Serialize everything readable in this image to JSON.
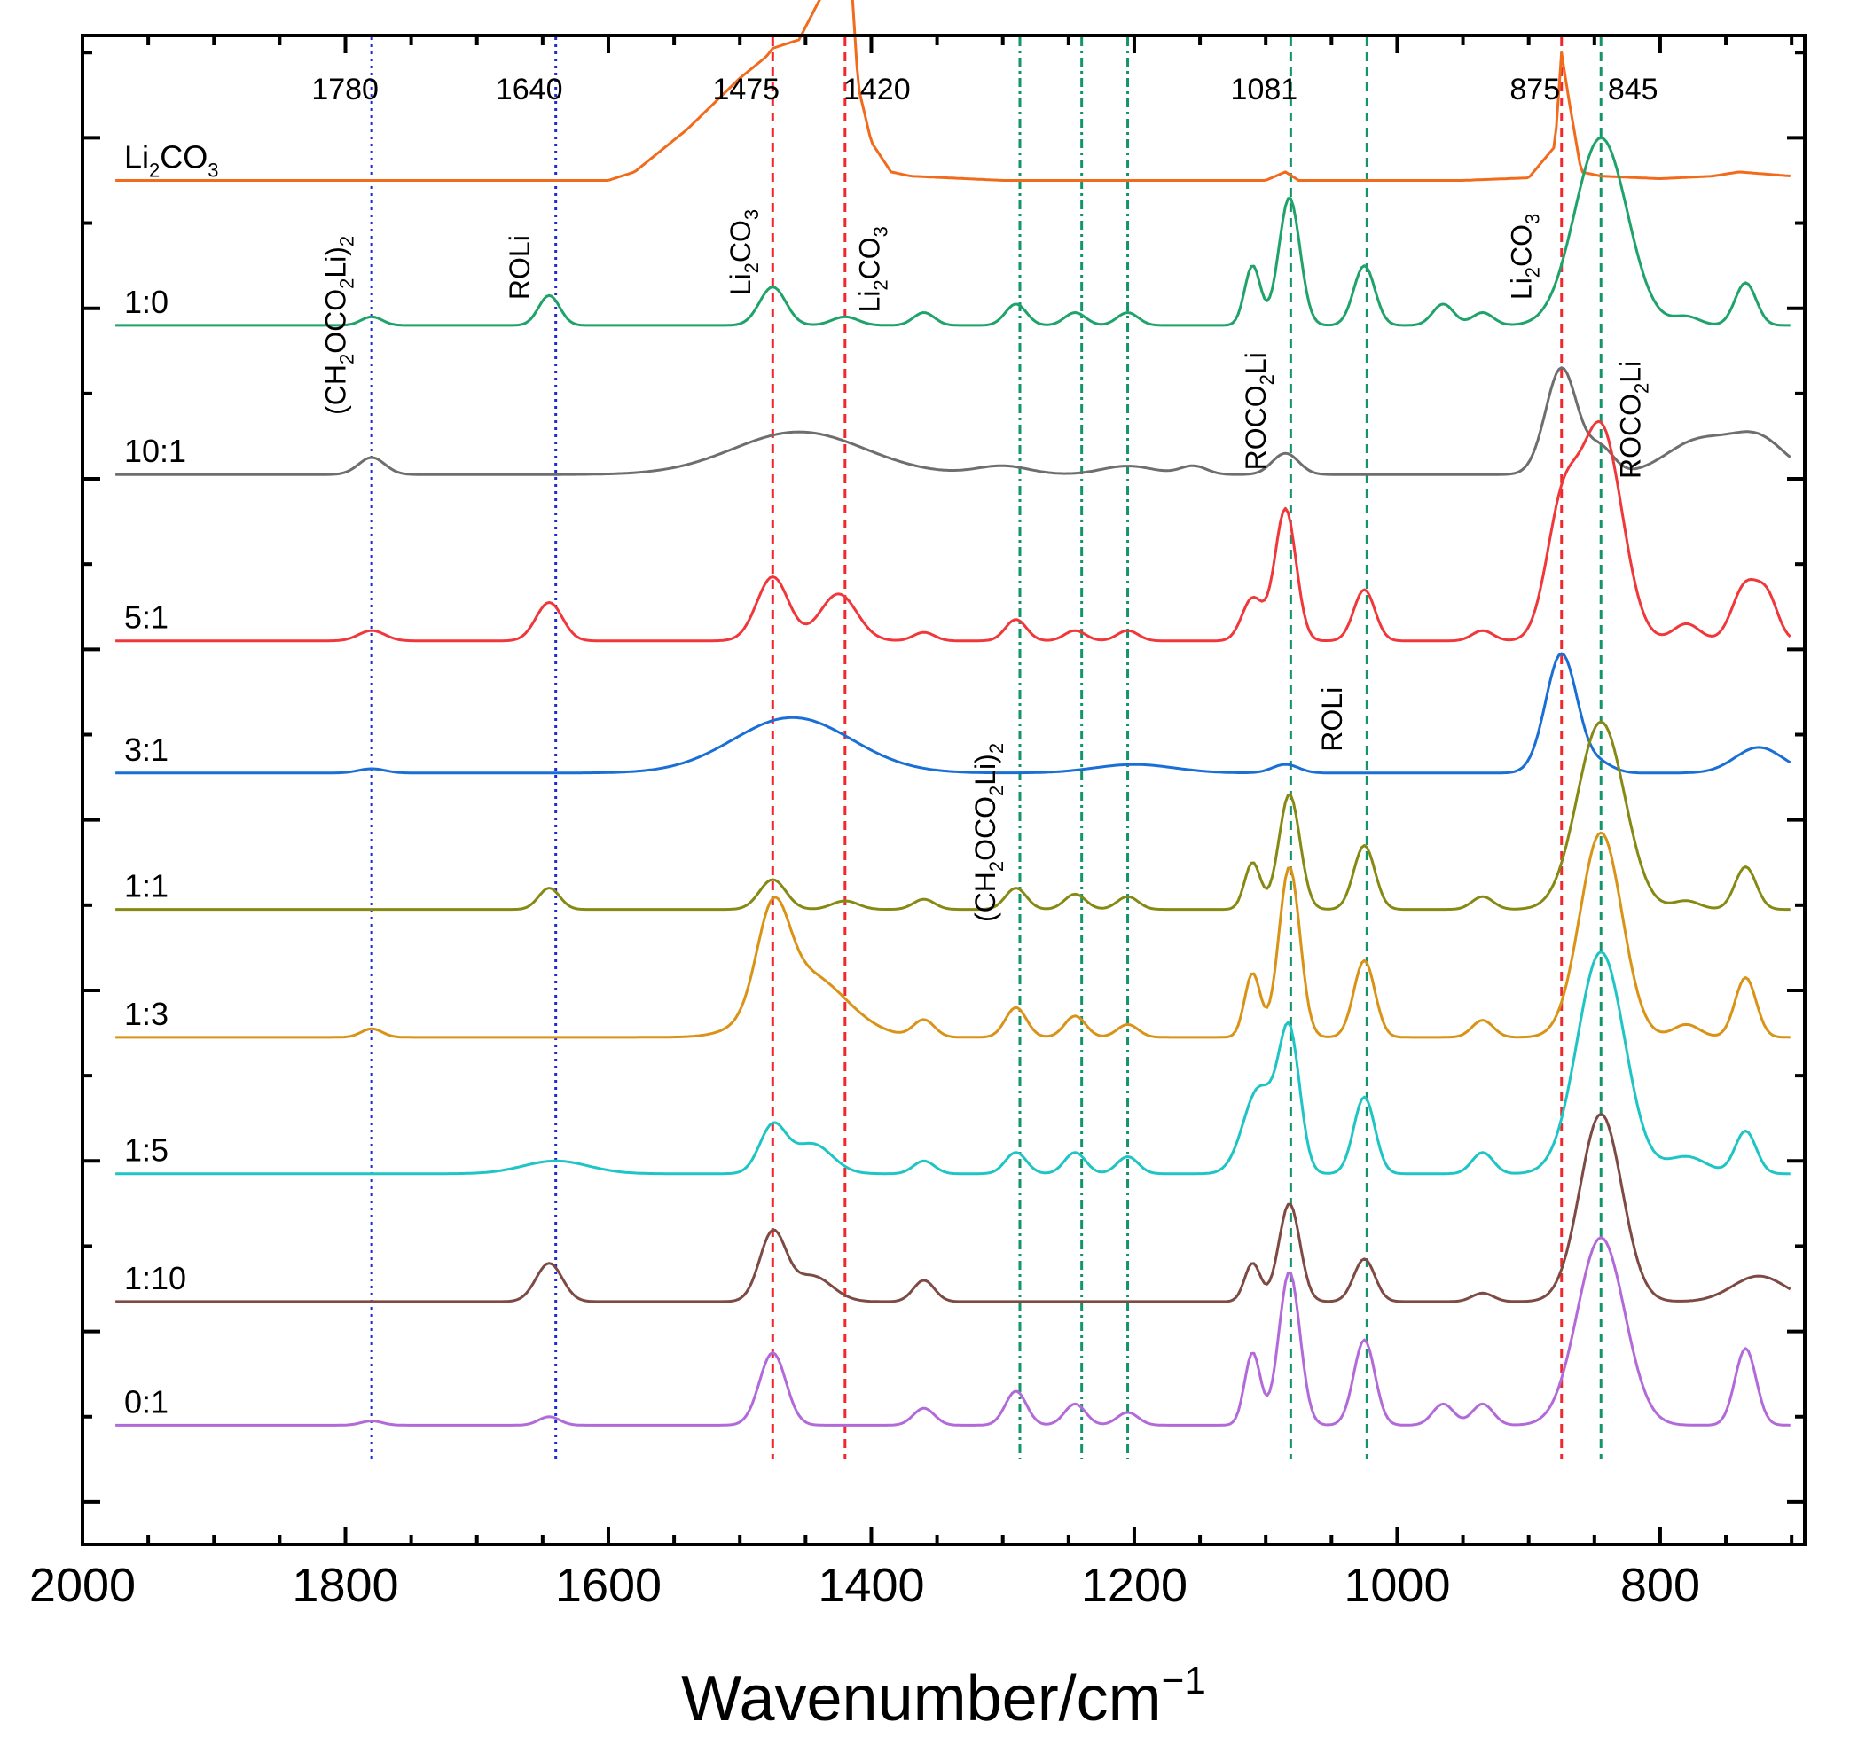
{
  "chart_data": {
    "type": "line",
    "title": "",
    "xlabel": "Wavenumber/cm",
    "xlabel_superscript": "−1",
    "ylabel": "",
    "xlim": [
      2000,
      690
    ],
    "x_ticks": [
      2000,
      1800,
      1600,
      1400,
      1200,
      1000,
      800
    ],
    "x_tick_labels": [
      "2000",
      "1800",
      "1600",
      "1400",
      "1200",
      "1000",
      "800"
    ],
    "y_axis_ticks_shown": true,
    "y_axis_labels_shown": false,
    "stack_order_top_to_bottom": [
      "Li2CO3",
      "1:0",
      "10:1",
      "5:1",
      "3:1",
      "1:1",
      "1:3",
      "1:5",
      "1:10",
      "0:1"
    ],
    "series": [
      {
        "name": "Li2CO3",
        "label_main": "Li",
        "label_sub1": "2",
        "label_mid": "CO",
        "label_sub2": "3",
        "color": "#f26b1d",
        "baseline": 11.5,
        "points": [
          [
            1970,
            0
          ],
          [
            1600,
            0
          ],
          [
            1580,
            0.1
          ],
          [
            1540,
            0.6
          ],
          [
            1500,
            1.2
          ],
          [
            1480,
            1.45
          ],
          [
            1475,
            1.55
          ],
          [
            1465,
            1.6
          ],
          [
            1455,
            1.65
          ],
          [
            1440,
            2.1
          ],
          [
            1425,
            2.5
          ],
          [
            1420,
            2.55
          ],
          [
            1415,
            2.3
          ],
          [
            1410,
            1.1
          ],
          [
            1400,
            0.45
          ],
          [
            1385,
            0.1
          ],
          [
            1370,
            0.05
          ],
          [
            1300,
            0
          ],
          [
            1100,
            0
          ],
          [
            1085,
            0.1
          ],
          [
            1075,
            0
          ],
          [
            950,
            0
          ],
          [
            900,
            0.03
          ],
          [
            880,
            0.4
          ],
          [
            875,
            1.5
          ],
          [
            870,
            1.0
          ],
          [
            860,
            0.1
          ],
          [
            845,
            0.05
          ],
          [
            800,
            0.02
          ],
          [
            760,
            0.05
          ],
          [
            740,
            0.1
          ],
          [
            700,
            0.05
          ]
        ]
      },
      {
        "name": "1:0",
        "label": "1:0",
        "color": "#1fa36a",
        "baseline": 9.8,
        "peaks": [
          [
            1780,
            0.1,
            8
          ],
          [
            1645,
            0.35,
            8
          ],
          [
            1475,
            0.45,
            10
          ],
          [
            1420,
            0.1,
            10
          ],
          [
            1360,
            0.15,
            8
          ],
          [
            1290,
            0.25,
            8
          ],
          [
            1245,
            0.15,
            8
          ],
          [
            1205,
            0.15,
            8
          ],
          [
            1110,
            0.7,
            6
          ],
          [
            1082,
            1.5,
            8
          ],
          [
            1025,
            0.7,
            8
          ],
          [
            965,
            0.25,
            8
          ],
          [
            935,
            0.15,
            8
          ],
          [
            845,
            2.2,
            20
          ],
          [
            780,
            0.1,
            10
          ],
          [
            735,
            0.5,
            8
          ]
        ]
      },
      {
        "name": "10:1",
        "label": "10:1",
        "color": "#6e6e6e",
        "baseline": 8.05,
        "peaks": [
          [
            1780,
            0.2,
            10
          ],
          [
            1455,
            0.5,
            50
          ],
          [
            1300,
            0.1,
            20
          ],
          [
            1205,
            0.1,
            20
          ],
          [
            1155,
            0.1,
            10
          ],
          [
            1085,
            0.25,
            10
          ],
          [
            875,
            1.25,
            12
          ],
          [
            845,
            0.3,
            10
          ],
          [
            770,
            0.4,
            25
          ],
          [
            725,
            0.4,
            20
          ]
        ]
      },
      {
        "name": "5:1",
        "label": "5:1",
        "color": "#f0373a",
        "baseline": 6.1,
        "peaks": [
          [
            1780,
            0.12,
            10
          ],
          [
            1645,
            0.45,
            10
          ],
          [
            1475,
            0.75,
            12
          ],
          [
            1425,
            0.55,
            14
          ],
          [
            1360,
            0.1,
            8
          ],
          [
            1290,
            0.25,
            8
          ],
          [
            1245,
            0.12,
            8
          ],
          [
            1205,
            0.12,
            8
          ],
          [
            1110,
            0.5,
            8
          ],
          [
            1085,
            1.55,
            8
          ],
          [
            1025,
            0.6,
            8
          ],
          [
            935,
            0.12,
            8
          ],
          [
            875,
            1.4,
            12
          ],
          [
            845,
            2.5,
            16
          ],
          [
            780,
            0.2,
            10
          ],
          [
            735,
            0.65,
            10
          ],
          [
            718,
            0.45,
            8
          ]
        ]
      },
      {
        "name": "3:1",
        "label": "3:1",
        "color": "#1a6fd6",
        "baseline": 4.55,
        "peaks": [
          [
            1780,
            0.05,
            10
          ],
          [
            1460,
            0.65,
            45
          ],
          [
            1085,
            0.1,
            10
          ],
          [
            1200,
            0.1,
            30
          ],
          [
            875,
            1.4,
            12
          ],
          [
            845,
            0.1,
            10
          ],
          [
            725,
            0.3,
            18
          ]
        ]
      },
      {
        "name": "1:1",
        "label": "1:1",
        "color": "#868a14",
        "baseline": 2.95,
        "peaks": [
          [
            1645,
            0.25,
            8
          ],
          [
            1475,
            0.35,
            10
          ],
          [
            1420,
            0.1,
            10
          ],
          [
            1360,
            0.12,
            8
          ],
          [
            1290,
            0.25,
            8
          ],
          [
            1245,
            0.18,
            8
          ],
          [
            1205,
            0.15,
            8
          ],
          [
            1110,
            0.55,
            6
          ],
          [
            1082,
            1.35,
            8
          ],
          [
            1025,
            0.75,
            8
          ],
          [
            935,
            0.15,
            8
          ],
          [
            845,
            2.2,
            18
          ],
          [
            780,
            0.1,
            10
          ],
          [
            735,
            0.5,
            8
          ]
        ]
      },
      {
        "name": "1:3",
        "label": "1:3",
        "color": "#d99316",
        "baseline": 1.45,
        "peaks": [
          [
            1780,
            0.1,
            8
          ],
          [
            1475,
            1.1,
            12
          ],
          [
            1450,
            0.75,
            30
          ],
          [
            1360,
            0.2,
            8
          ],
          [
            1290,
            0.35,
            8
          ],
          [
            1245,
            0.25,
            8
          ],
          [
            1205,
            0.15,
            8
          ],
          [
            1110,
            0.75,
            6
          ],
          [
            1082,
            2.0,
            8
          ],
          [
            1025,
            0.9,
            8
          ],
          [
            935,
            0.2,
            8
          ],
          [
            845,
            2.4,
            16
          ],
          [
            780,
            0.15,
            10
          ],
          [
            735,
            0.7,
            8
          ]
        ]
      },
      {
        "name": "1:5",
        "label": "1:5",
        "color": "#1fc4c4",
        "baseline": -0.15,
        "peaks": [
          [
            1640,
            0.15,
            25
          ],
          [
            1475,
            0.55,
            10
          ],
          [
            1445,
            0.35,
            15
          ],
          [
            1360,
            0.15,
            8
          ],
          [
            1290,
            0.25,
            8
          ],
          [
            1245,
            0.25,
            8
          ],
          [
            1205,
            0.2,
            8
          ],
          [
            1105,
            1.0,
            12
          ],
          [
            1082,
            1.6,
            8
          ],
          [
            1025,
            0.9,
            8
          ],
          [
            935,
            0.25,
            8
          ],
          [
            845,
            2.6,
            18
          ],
          [
            780,
            0.2,
            15
          ],
          [
            735,
            0.5,
            8
          ]
        ]
      },
      {
        "name": "1:10",
        "label": "1:10",
        "color": "#7d4a44",
        "baseline": -1.65,
        "peaks": [
          [
            1645,
            0.45,
            10
          ],
          [
            1475,
            0.8,
            10
          ],
          [
            1445,
            0.3,
            15
          ],
          [
            1360,
            0.25,
            8
          ],
          [
            1110,
            0.45,
            6
          ],
          [
            1082,
            1.15,
            8
          ],
          [
            1025,
            0.5,
            8
          ],
          [
            935,
            0.1,
            8
          ],
          [
            845,
            2.2,
            16
          ],
          [
            725,
            0.3,
            20
          ]
        ]
      },
      {
        "name": "0:1",
        "label": "0:1",
        "color": "#b36ad9",
        "baseline": -3.1,
        "peaks": [
          [
            1780,
            0.05,
            8
          ],
          [
            1645,
            0.1,
            8
          ],
          [
            1475,
            0.85,
            10
          ],
          [
            1360,
            0.2,
            8
          ],
          [
            1290,
            0.4,
            8
          ],
          [
            1245,
            0.25,
            8
          ],
          [
            1205,
            0.15,
            8
          ],
          [
            1110,
            0.85,
            6
          ],
          [
            1082,
            1.8,
            8
          ],
          [
            1025,
            1.0,
            8
          ],
          [
            965,
            0.25,
            8
          ],
          [
            935,
            0.25,
            8
          ],
          [
            845,
            2.2,
            18
          ],
          [
            735,
            0.9,
            8
          ]
        ]
      }
    ],
    "reference_lines": [
      {
        "x": 1780,
        "color": "#1a2bd6",
        "style": "dotted",
        "top_label": "1780"
      },
      {
        "x": 1640,
        "color": "#1a2bd6",
        "style": "dotted",
        "top_label": "1640"
      },
      {
        "x": 1475,
        "color": "#f0282d",
        "style": "dashed",
        "top_label": "1475"
      },
      {
        "x": 1420,
        "color": "#f0282d",
        "style": "dashed",
        "top_label": "1420"
      },
      {
        "x": 1287,
        "color": "#14946a",
        "style": "dashdot",
        "top_label": ""
      },
      {
        "x": 1240,
        "color": "#14946a",
        "style": "dashdot",
        "top_label": ""
      },
      {
        "x": 1205,
        "color": "#14946a",
        "style": "dashdot",
        "top_label": ""
      },
      {
        "x": 1081,
        "color": "#14946a",
        "style": "dashed",
        "top_label": "1081"
      },
      {
        "x": 1023,
        "color": "#14946a",
        "style": "dashed",
        "top_label": ""
      },
      {
        "x": 875,
        "color": "#f0282d",
        "style": "dashed",
        "top_label": "875"
      },
      {
        "x": 845,
        "color": "#14946a",
        "style": "dashed",
        "top_label": "845"
      }
    ],
    "annotations": [
      {
        "id": "a-ch2oco2li2-left",
        "main": "(CH",
        "s1": "2",
        "m2": "OCO",
        "s2": "2",
        "m3": "Li)",
        "s3": "2",
        "x": 1800,
        "y": 8.75
      },
      {
        "id": "a-roli-left",
        "main": "ROLi",
        "s1": "",
        "m2": "",
        "s2": "",
        "m3": "",
        "s3": "",
        "x": 1660,
        "y": 10.1
      },
      {
        "id": "a-li2co3-1475",
        "main": "Li",
        "s1": "2",
        "m2": "CO",
        "s2": "3",
        "m3": "",
        "s3": "",
        "x": 1492,
        "y": 10.15
      },
      {
        "id": "a-li2co3-1420",
        "main": "Li",
        "s1": "2",
        "m2": "CO",
        "s2": "3",
        "m3": "",
        "s3": "",
        "x": 1394,
        "y": 9.95
      },
      {
        "id": "a-rocoli-mid",
        "main": "ROCO",
        "s1": "2",
        "m2": "Li",
        "s2": "",
        "m3": "",
        "s3": "",
        "x": 1100,
        "y": 8.1
      },
      {
        "id": "a-li2co3-875",
        "main": "Li",
        "s1": "2",
        "m2": "CO",
        "s2": "3",
        "m3": "",
        "s3": "",
        "x": 898,
        "y": 10.1
      },
      {
        "id": "a-rocoli-right",
        "main": "ROCO",
        "s1": "2",
        "m2": "Li",
        "s2": "",
        "m3": "",
        "s3": "",
        "x": 815,
        "y": 8.0
      },
      {
        "id": "a-ch2oco2li2-mid",
        "main": "(CH",
        "s1": "2",
        "m2": "OCO",
        "s2": "2",
        "m3": "Li)",
        "s3": "2",
        "x": 1306,
        "y": 2.8
      },
      {
        "id": "a-roli-mid",
        "main": "ROLi",
        "s1": "",
        "m2": "",
        "s2": "",
        "m3": "",
        "s3": "",
        "x": 1042,
        "y": 4.8
      }
    ]
  }
}
